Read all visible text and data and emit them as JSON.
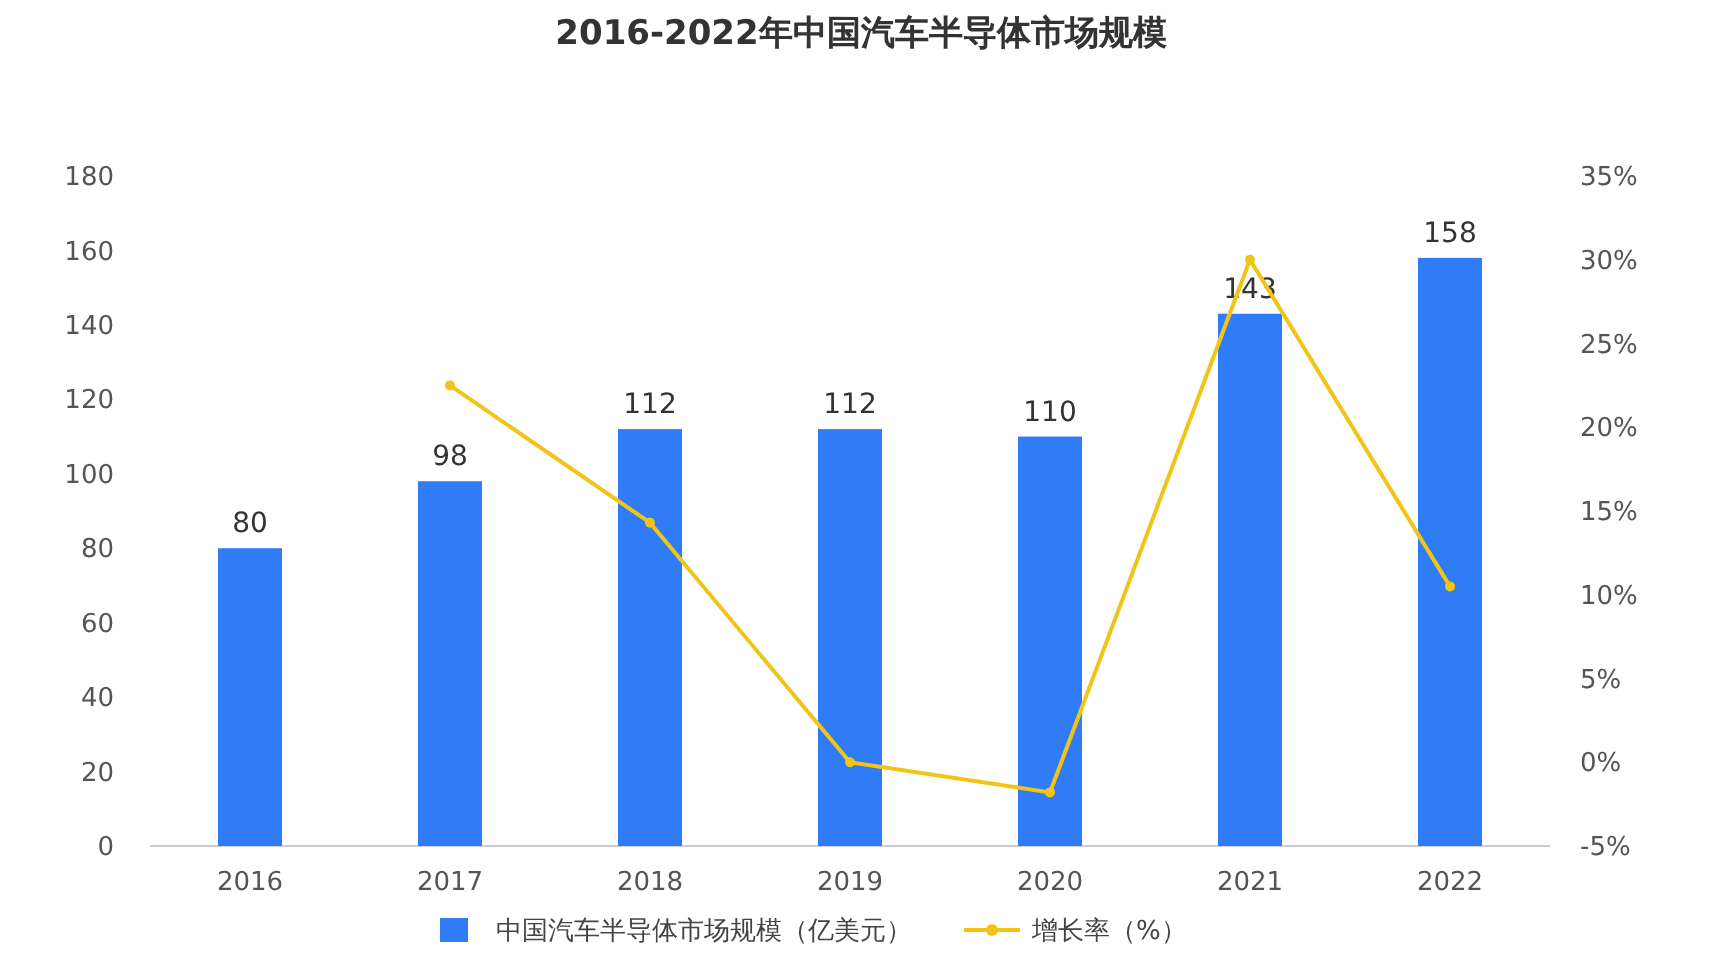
{
  "chart_data": {
    "type": "bar",
    "title": "2016-2022年中国汽车半导体市场规模",
    "categories": [
      "2016",
      "2017",
      "2018",
      "2019",
      "2020",
      "2021",
      "2022"
    ],
    "series": [
      {
        "name": "中国汽车半导体市场规模（亿美元）",
        "color": "#2f7cf6",
        "values": [
          80,
          98,
          112,
          112,
          110,
          143,
          158
        ],
        "value_labels": [
          "80",
          "98",
          "112",
          "112",
          "110",
          "143",
          "158"
        ]
      },
      {
        "name": "增长率（%）",
        "type": "line",
        "axis": "y2",
        "color": "#f2c418",
        "values": [
          null,
          22.5,
          14.3,
          0,
          -1.8,
          30,
          10.5
        ]
      }
    ],
    "ylim": [
      0,
      180
    ],
    "yticks": [
      0,
      20,
      40,
      60,
      80,
      100,
      120,
      140,
      160,
      180
    ],
    "y2lim": [
      -5,
      35
    ],
    "y2ticks": [
      {
        "value": -5,
        "label": "-5%"
      },
      {
        "value": 0,
        "label": "0%"
      },
      {
        "value": 5,
        "label": "5%"
      },
      {
        "value": 10,
        "label": "10%"
      },
      {
        "value": 15,
        "label": "15%"
      },
      {
        "value": 20,
        "label": "20%"
      },
      {
        "value": 25,
        "label": "25%"
      },
      {
        "value": 30,
        "label": "30%"
      },
      {
        "value": 35,
        "label": "35%"
      }
    ],
    "legend": "bottom",
    "marker": "circle",
    "line_style": "solid"
  }
}
